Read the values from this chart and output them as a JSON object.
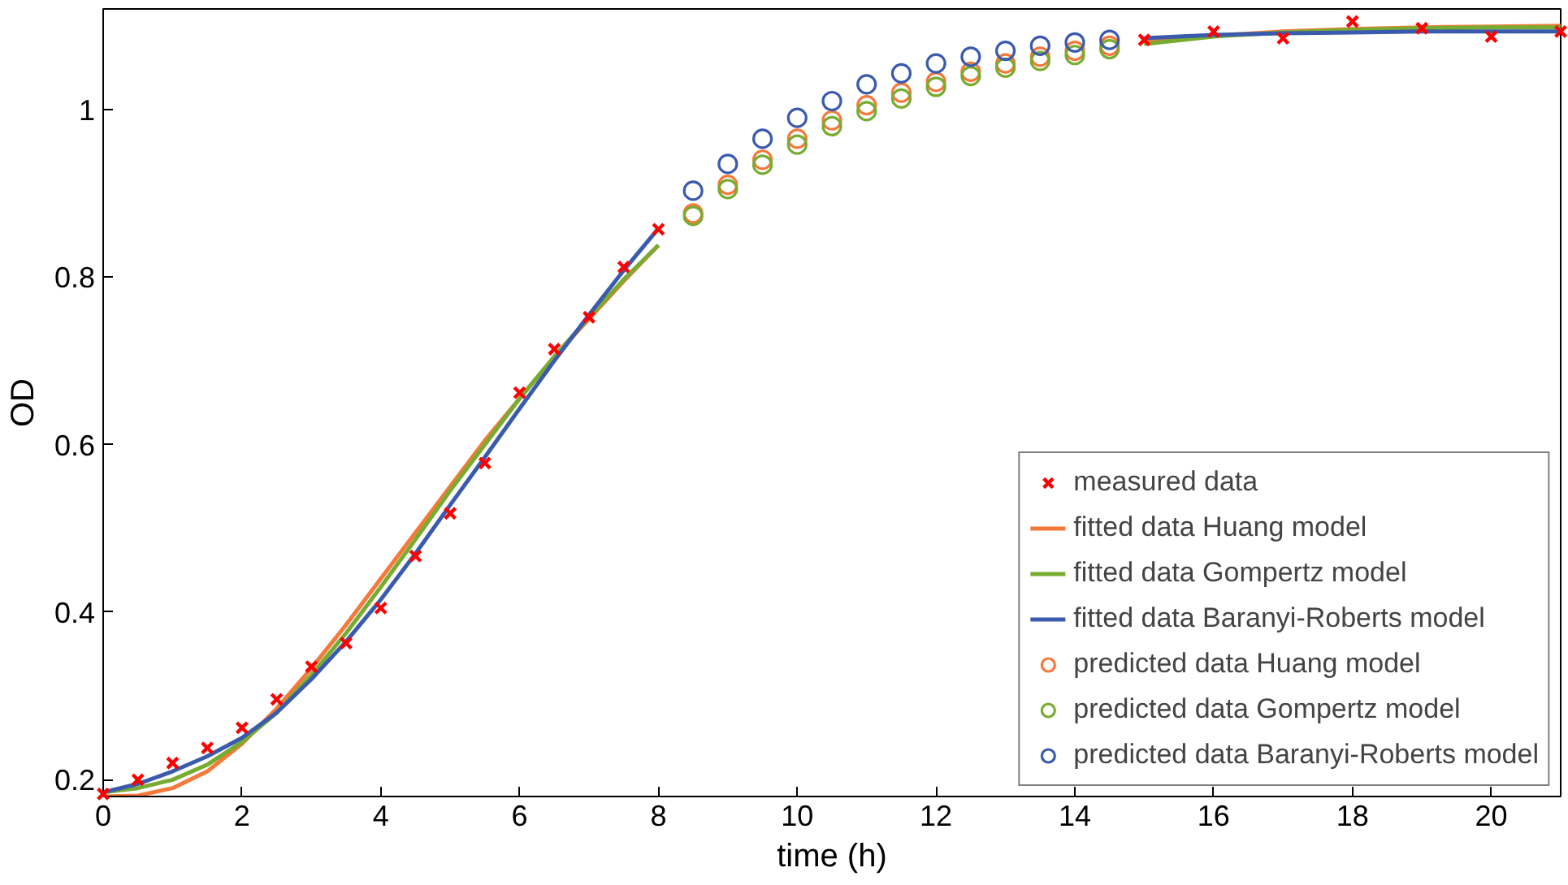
{
  "chart_data": {
    "type": "line",
    "xlabel": "time (h)",
    "ylabel": "OD",
    "xlim": [
      0,
      21
    ],
    "ylim": [
      0.18,
      1.12
    ],
    "xticks": [
      0,
      2,
      4,
      6,
      8,
      10,
      12,
      14,
      16,
      18,
      20
    ],
    "yticks": [
      0.2,
      0.4,
      0.6,
      0.8,
      1
    ],
    "grid": false,
    "legend": "bottom right",
    "x": [
      0,
      0.5,
      1,
      1.5,
      2,
      2.5,
      3,
      3.5,
      4,
      4.5,
      5,
      5.5,
      6,
      6.5,
      7,
      7.5,
      8,
      15,
      16,
      17,
      18,
      19,
      20,
      21
    ],
    "series": [
      {
        "name": "measured data",
        "type": "scatter",
        "marker": "cross",
        "color": "#ff0000",
        "values": [
          0.183,
          0.2,
          0.22,
          0.238,
          0.262,
          0.296,
          0.335,
          0.363,
          0.405,
          0.467,
          0.518,
          0.578,
          0.662,
          0.714,
          0.752,
          0.812,
          0.857,
          1.083,
          1.093,
          1.085,
          1.105,
          1.097,
          1.087,
          1.093
        ]
      },
      {
        "name": "fitted data Huang model",
        "marker": "none",
        "color": "#f4793b",
        "x": [
          0,
          0.5,
          1,
          1.5,
          2,
          2.5,
          3,
          3.5,
          4,
          4.5,
          5,
          5.5,
          6,
          6.5,
          7,
          7.5,
          8,
          null,
          15,
          16,
          17,
          18,
          19,
          20,
          21
        ],
        "values": [
          0.18,
          0.181,
          0.19,
          0.21,
          0.243,
          0.285,
          0.333,
          0.385,
          0.44,
          0.495,
          0.55,
          0.605,
          0.655,
          0.705,
          0.75,
          0.795,
          0.838,
          null,
          1.08,
          1.088,
          1.093,
          1.096,
          1.098,
          1.099,
          1.1
        ]
      },
      {
        "name": "fitted data Gompertz model",
        "marker": "none",
        "color": "#77ac30",
        "x": [
          0,
          0.5,
          1,
          1.5,
          2,
          2.5,
          3,
          3.5,
          4,
          4.5,
          5,
          5.5,
          6,
          6.5,
          7,
          7.5,
          8,
          null,
          15,
          16,
          17,
          18,
          19,
          20,
          21
        ],
        "values": [
          0.185,
          0.19,
          0.2,
          0.218,
          0.245,
          0.28,
          0.325,
          0.375,
          0.43,
          0.487,
          0.545,
          0.6,
          0.655,
          0.705,
          0.752,
          0.797,
          0.838,
          null,
          1.078,
          1.087,
          1.092,
          1.095,
          1.097,
          1.098,
          1.098
        ]
      },
      {
        "name": "fitted data Baranyi-Roberts model",
        "marker": "none",
        "color": "#3a5bad",
        "x": [
          0,
          0.5,
          1,
          1.5,
          2,
          2.5,
          3,
          3.5,
          4,
          4.5,
          5,
          5.5,
          6,
          6.5,
          7,
          7.5,
          8,
          null,
          15,
          16,
          17,
          18,
          19,
          20,
          21
        ],
        "values": [
          0.185,
          0.195,
          0.21,
          0.228,
          0.25,
          0.28,
          0.32,
          0.365,
          0.415,
          0.47,
          0.528,
          0.585,
          0.643,
          0.7,
          0.755,
          0.808,
          0.858,
          null,
          1.085,
          1.089,
          1.091,
          1.092,
          1.093,
          1.093,
          1.093
        ]
      },
      {
        "name": "predicted data Huang model",
        "type": "scatter",
        "marker": "circle",
        "color": "#f4793b",
        "x": [
          8.5,
          9,
          9.5,
          10,
          10.5,
          11,
          11.5,
          12,
          12.5,
          13,
          13.5,
          14,
          14.5
        ],
        "values": [
          0.876,
          0.91,
          0.94,
          0.965,
          0.987,
          1.005,
          1.02,
          1.033,
          1.045,
          1.055,
          1.063,
          1.07,
          1.076
        ]
      },
      {
        "name": "predicted data Gompertz model",
        "type": "scatter",
        "marker": "circle",
        "color": "#77ac30",
        "x": [
          8.5,
          9,
          9.5,
          10,
          10.5,
          11,
          11.5,
          12,
          12.5,
          13,
          13.5,
          14,
          14.5
        ],
        "values": [
          0.873,
          0.905,
          0.934,
          0.958,
          0.98,
          0.998,
          1.013,
          1.027,
          1.04,
          1.05,
          1.058,
          1.065,
          1.072
        ]
      },
      {
        "name": "predicted data Baranyi-Roberts model",
        "type": "scatter",
        "marker": "circle",
        "color": "#3a5bad",
        "x": [
          8.5,
          9,
          9.5,
          10,
          10.5,
          11,
          11.5,
          12,
          12.5,
          13,
          13.5,
          14,
          14.5
        ],
        "values": [
          0.903,
          0.935,
          0.965,
          0.99,
          1.01,
          1.03,
          1.043,
          1.055,
          1.063,
          1.07,
          1.076,
          1.08,
          1.083
        ]
      }
    ]
  }
}
